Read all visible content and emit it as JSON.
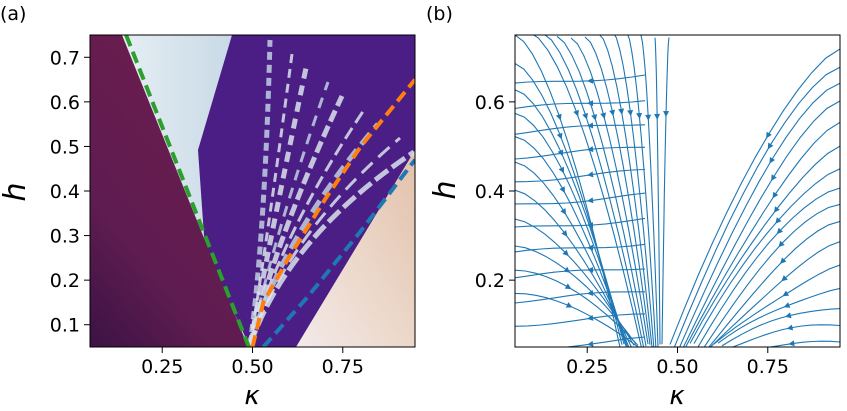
{
  "colors": {
    "green_boundary": "#2ca02c",
    "orange_boundary": "#ff7f0e",
    "blue_boundary": "#1f77b4",
    "stream": "#1f77b4",
    "maroon_region": "#6b1c4f",
    "light_region": "#d4e3eb",
    "purple_region": "#4b1e86",
    "peach_region": "#ead2c2"
  },
  "chart_data": [
    {
      "panel_label": "(a)",
      "type": "heatmap",
      "xlabel": "κ",
      "ylabel": "h",
      "xlim": [
        0.05,
        0.95
      ],
      "ylim": [
        0.05,
        0.75
      ],
      "xticks": [
        "0.25",
        "0.50",
        "0.75"
      ],
      "yticks": [
        "0.1",
        "0.2",
        "0.3",
        "0.4",
        "0.5",
        "0.6",
        "0.7"
      ],
      "grid": false,
      "series": [
        {
          "style": "dashed",
          "color": "#2ca02c",
          "x": [
            0.15,
            0.49
          ],
          "y": [
            0.75,
            0.05
          ]
        },
        {
          "style": "dashed",
          "color": "#ff7f0e",
          "x": [
            0.5,
            0.53,
            0.6,
            0.7,
            0.8,
            0.95
          ],
          "y": [
            0.05,
            0.15,
            0.25,
            0.38,
            0.5,
            0.65
          ]
        },
        {
          "style": "dashed",
          "color": "#1f77b4",
          "x": [
            0.53,
            0.65,
            0.8,
            0.95
          ],
          "y": [
            0.05,
            0.16,
            0.31,
            0.47
          ]
        }
      ]
    },
    {
      "panel_label": "(b)",
      "type": "streamplot",
      "xlabel": "κ",
      "ylabel": "h",
      "xlim": [
        0.05,
        0.95
      ],
      "ylim": [
        0.05,
        0.75
      ],
      "xticks": [
        "0.25",
        "0.50",
        "0.75"
      ],
      "yticks": [
        "0.2",
        "0.4",
        "0.6"
      ],
      "grid": false,
      "stream_color": "#1f77b4"
    }
  ]
}
